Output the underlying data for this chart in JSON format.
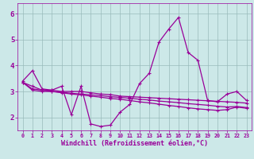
{
  "xlabel": "Windchill (Refroidissement éolien,°C)",
  "xlim": [
    -0.5,
    23.5
  ],
  "ylim": [
    1.5,
    6.4
  ],
  "yticks": [
    2,
    3,
    4,
    5,
    6
  ],
  "xticks": [
    0,
    1,
    2,
    3,
    4,
    5,
    6,
    7,
    8,
    9,
    10,
    11,
    12,
    13,
    14,
    15,
    16,
    17,
    18,
    19,
    20,
    21,
    22,
    23
  ],
  "bg_color": "#cce8e8",
  "line_color": "#990099",
  "grid_color": "#99bbbb",
  "line1_y": [
    3.4,
    3.8,
    3.1,
    3.05,
    3.2,
    2.1,
    3.2,
    1.75,
    1.65,
    1.7,
    2.2,
    2.5,
    3.3,
    3.7,
    4.9,
    5.4,
    5.85,
    4.5,
    4.2,
    2.65,
    2.6,
    2.9,
    3.0,
    2.65
  ],
  "line2_y": [
    3.35,
    3.1,
    3.05,
    3.05,
    3.0,
    3.0,
    3.0,
    2.95,
    2.9,
    2.88,
    2.82,
    2.8,
    2.78,
    2.76,
    2.74,
    2.72,
    2.7,
    2.68,
    2.66,
    2.64,
    2.62,
    2.6,
    2.58,
    2.55
  ],
  "line3_y": [
    3.35,
    3.05,
    3.0,
    3.0,
    2.97,
    2.93,
    2.9,
    2.87,
    2.84,
    2.8,
    2.77,
    2.74,
    2.7,
    2.67,
    2.63,
    2.6,
    2.57,
    2.53,
    2.5,
    2.47,
    2.43,
    2.4,
    2.42,
    2.38
  ],
  "line4_y": [
    3.35,
    3.2,
    3.05,
    3.0,
    2.95,
    2.9,
    2.87,
    2.82,
    2.78,
    2.73,
    2.7,
    2.65,
    2.6,
    2.56,
    2.51,
    2.46,
    2.42,
    2.37,
    2.33,
    2.3,
    2.27,
    2.3,
    2.4,
    2.35
  ]
}
